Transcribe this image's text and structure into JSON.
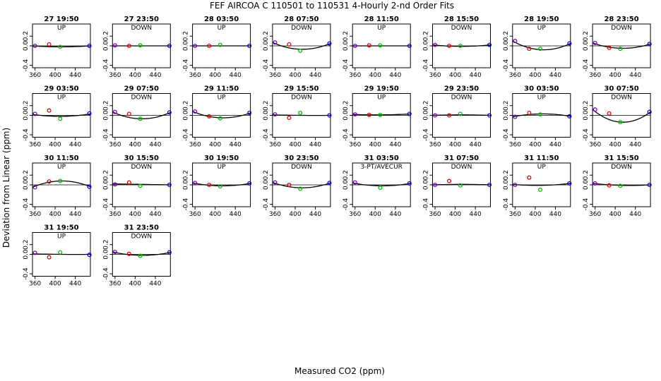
{
  "title": "FEF   AIRCOA C   110501 to 110531   4-Hourly 2-nd Order Fits",
  "xlabel": "Measured CO2 (ppm)",
  "ylabel": "Deviation from Linear (ppm)",
  "chart_data": {
    "type": "scatter",
    "xlim": [
      355,
      470
    ],
    "ylim": [
      -0.45,
      0.45
    ],
    "xticks": [
      360,
      400,
      440
    ],
    "yticks": [
      -0.4,
      0,
      0.2
    ],
    "ytick_labels": [
      "-0.4",
      "0.0",
      "0.2"
    ],
    "colors": {
      "s1": "#8000c0",
      "s2": "#e00000",
      "s3": "#00c000",
      "s4": "#0000e0",
      "curve": "#000000"
    },
    "panels": [
      {
        "title": "27 19:50",
        "label": "UP",
        "x": [
          360,
          388,
          410,
          468
        ],
        "y": [
          0.0,
          0.03,
          -0.02,
          0.0
        ],
        "fit": [
          0,
          -0.02,
          0
        ]
      },
      {
        "title": "27 23:50",
        "label": "DOWN",
        "x": [
          360,
          388,
          410,
          468
        ],
        "y": [
          0.01,
          0.0,
          0.01,
          0.0
        ],
        "fit": [
          0,
          0,
          0
        ]
      },
      {
        "title": "28 03:50",
        "label": "UP",
        "x": [
          360,
          388,
          410,
          468
        ],
        "y": [
          0.0,
          0.0,
          0.02,
          0.0
        ],
        "fit": [
          0,
          0,
          0
        ]
      },
      {
        "title": "28 07:50",
        "label": "DOWN",
        "x": [
          360,
          388,
          410,
          468
        ],
        "y": [
          0.07,
          0.03,
          -0.1,
          0.05
        ],
        "fit": [
          0.07,
          -0.07,
          0.05
        ]
      },
      {
        "title": "28 11:50",
        "label": "UP",
        "x": [
          360,
          388,
          410,
          468
        ],
        "y": [
          0.0,
          0.01,
          0.01,
          0.0
        ],
        "fit": [
          0,
          0,
          0
        ]
      },
      {
        "title": "28 15:50",
        "label": "DOWN",
        "x": [
          360,
          388,
          410,
          468
        ],
        "y": [
          0.02,
          0.0,
          0.0,
          0.02
        ],
        "fit": [
          0.02,
          -0.01,
          0.02
        ]
      },
      {
        "title": "28 19:50",
        "label": "UP",
        "x": [
          360,
          388,
          410,
          468
        ],
        "y": [
          0.1,
          -0.06,
          -0.06,
          0.05
        ],
        "fit": [
          0.1,
          -0.08,
          0.05
        ]
      },
      {
        "title": "28 23:50",
        "label": "DOWN",
        "x": [
          360,
          388,
          410,
          468
        ],
        "y": [
          0.06,
          -0.04,
          -0.06,
          0.04
        ],
        "fit": [
          0.06,
          -0.05,
          0.04
        ]
      },
      {
        "title": "29 03:50",
        "label": "UP",
        "x": [
          360,
          388,
          410,
          468
        ],
        "y": [
          0.03,
          0.1,
          -0.07,
          0.04
        ],
        "fit": [
          0.02,
          -0.02,
          0.03
        ]
      },
      {
        "title": "29 07:50",
        "label": "DOWN",
        "x": [
          360,
          388,
          410,
          468
        ],
        "y": [
          0.07,
          0.03,
          -0.07,
          0.06
        ],
        "fit": [
          0.07,
          -0.07,
          0.06
        ]
      },
      {
        "title": "29 11:50",
        "label": "UP",
        "x": [
          360,
          388,
          410,
          468
        ],
        "y": [
          0.08,
          -0.02,
          -0.06,
          0.05
        ],
        "fit": [
          0.08,
          -0.05,
          0.05
        ]
      },
      {
        "title": "29 15:50",
        "label": "DOWN",
        "x": [
          360,
          388,
          410,
          468
        ],
        "y": [
          0.02,
          -0.05,
          0.05,
          0.0
        ],
        "fit": [
          0.01,
          0,
          0
        ]
      },
      {
        "title": "29 19:50",
        "label": "UP",
        "x": [
          360,
          388,
          410,
          468
        ],
        "y": [
          0.02,
          0.01,
          0.01,
          0.03
        ],
        "fit": [
          0.02,
          0.01,
          0.03
        ]
      },
      {
        "title": "29 23:50",
        "label": "DOWN",
        "x": [
          360,
          388,
          410,
          468
        ],
        "y": [
          0.0,
          0.0,
          0.03,
          0.0
        ],
        "fit": [
          0,
          0.01,
          0
        ]
      },
      {
        "title": "30 03:50",
        "label": "UP",
        "x": [
          360,
          388,
          410,
          468
        ],
        "y": [
          -0.03,
          0.05,
          0.02,
          -0.02
        ],
        "fit": [
          -0.03,
          0.03,
          -0.02
        ]
      },
      {
        "title": "30 07:50",
        "label": "DOWN",
        "x": [
          360,
          388,
          410,
          468
        ],
        "y": [
          0.12,
          0.04,
          -0.14,
          0.07
        ],
        "fit": [
          0.12,
          -0.14,
          0.07
        ]
      },
      {
        "title": "30 11:50",
        "label": "UP",
        "x": [
          360,
          388,
          410,
          468
        ],
        "y": [
          -0.05,
          0.07,
          0.08,
          -0.04
        ],
        "fit": [
          -0.05,
          0.08,
          -0.04
        ]
      },
      {
        "title": "30 15:50",
        "label": "DOWN",
        "x": [
          360,
          388,
          410,
          468
        ],
        "y": [
          0.01,
          0.05,
          -0.02,
          0.0
        ],
        "fit": [
          0.02,
          0.01,
          0
        ]
      },
      {
        "title": "30 19:50",
        "label": "UP",
        "x": [
          360,
          388,
          410,
          468
        ],
        "y": [
          0.04,
          0.0,
          -0.03,
          0.03
        ],
        "fit": [
          0.04,
          -0.02,
          0.03
        ]
      },
      {
        "title": "30 23:50",
        "label": "DOWN",
        "x": [
          360,
          388,
          410,
          468
        ],
        "y": [
          0.05,
          0.0,
          -0.08,
          0.04
        ],
        "fit": [
          0.05,
          -0.06,
          0.04
        ]
      },
      {
        "title": "31 03:50",
        "label": "3-PT/AVECUR",
        "x": [
          360,
          410,
          468
        ],
        "y": [
          0.05,
          -0.06,
          0.03
        ],
        "fit": [
          0.04,
          -0.02,
          0.03
        ]
      },
      {
        "title": "31 07:50",
        "label": "DOWN",
        "x": [
          360,
          388,
          410,
          468
        ],
        "y": [
          0.0,
          0.08,
          -0.01,
          0.0
        ],
        "fit": [
          0,
          0.01,
          0
        ]
      },
      {
        "title": "31 11:50",
        "label": "UP",
        "x": [
          360,
          388,
          410,
          468
        ],
        "y": [
          0.0,
          0.15,
          -0.1,
          0.03
        ],
        "fit": [
          0.01,
          -0.01,
          0.03
        ]
      },
      {
        "title": "31 15:50",
        "label": "DOWN",
        "x": [
          360,
          388,
          410,
          468
        ],
        "y": [
          0.03,
          -0.01,
          -0.02,
          0.0
        ],
        "fit": [
          0.03,
          -0.01,
          0
        ]
      },
      {
        "title": "31 19:50",
        "label": "UP",
        "x": [
          360,
          388,
          410,
          468
        ],
        "y": [
          0.03,
          -0.06,
          0.04,
          -0.01
        ],
        "fit": [
          0.01,
          0,
          0
        ]
      },
      {
        "title": "31 23:50",
        "label": "DOWN",
        "x": [
          360,
          388,
          410,
          468
        ],
        "y": [
          0.05,
          0.01,
          -0.03,
          0.04
        ],
        "fit": [
          0.05,
          -0.02,
          0.04
        ]
      }
    ]
  }
}
